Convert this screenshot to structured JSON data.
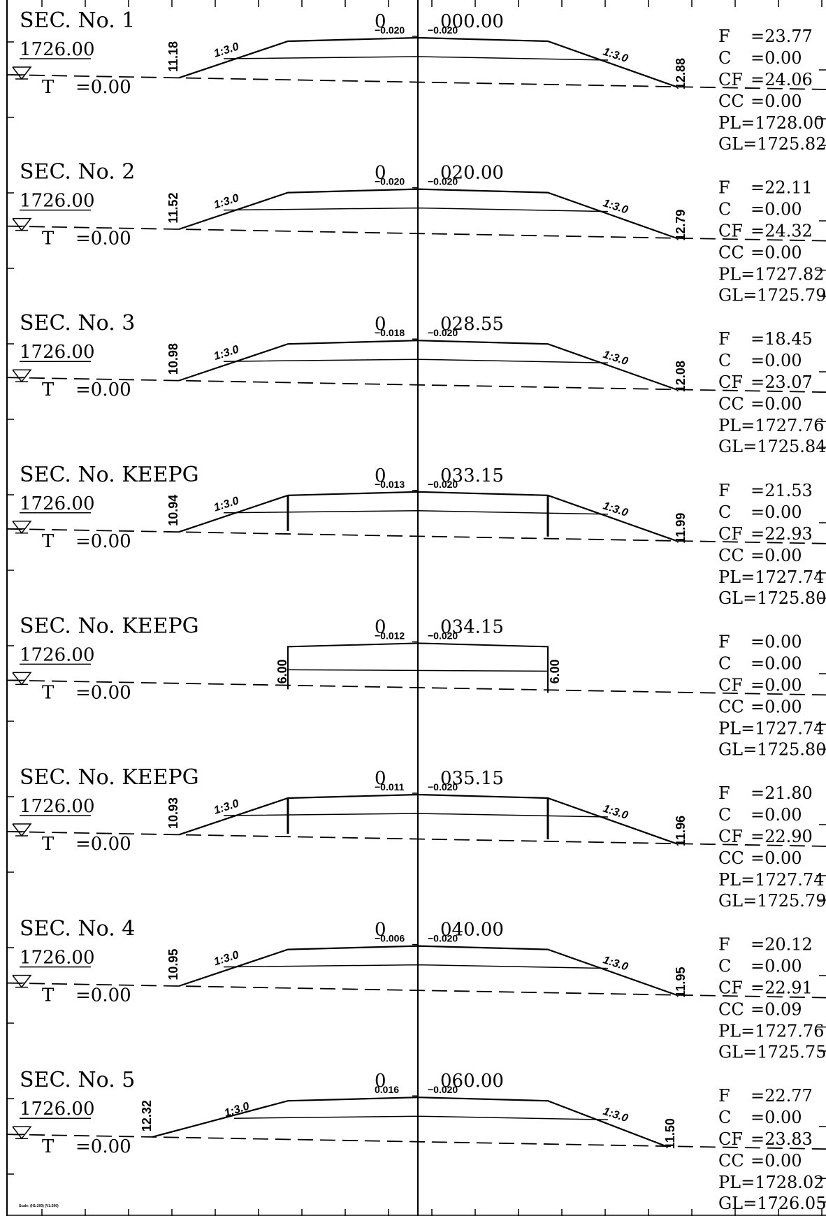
{
  "drawing": {
    "scale_note": "Scale: (H1:200) (V1:200)",
    "datum_label": "T",
    "sections": [
      {
        "title": "SEC.  No.  1",
        "offset_prefix": "0",
        "chainage": "000.00",
        "datum_elevation": "1726.00",
        "t_value": "=0.00",
        "left_camber": "−0.020",
        "right_camber": "−0.020",
        "left_slope": "1:3.0",
        "right_slope": "1:3.0",
        "left_height": "11.18",
        "right_height": "12.88",
        "wall": false,
        "props": {
          "F": "=23.77",
          "C": "=0.00",
          "CF": "=24.06",
          "CC": "=0.00",
          "PL": "PL=1728.00",
          "GL": "GL=1725.82"
        }
      },
      {
        "title": "SEC.  No.  2",
        "offset_prefix": "0",
        "chainage": "020.00",
        "datum_elevation": "1726.00",
        "t_value": "=0.00",
        "left_camber": "−0.020",
        "right_camber": "−0.020",
        "left_slope": "1:3.0",
        "right_slope": "1:3.0",
        "left_height": "11.52",
        "right_height": "12.79",
        "wall": false,
        "props": {
          "F": "=22.11",
          "C": "=0.00",
          "CF": "=24.32",
          "CC": "=0.00",
          "PL": "PL=1727.82",
          "GL": "GL=1725.79"
        }
      },
      {
        "title": "SEC.  No.  3",
        "offset_prefix": "0",
        "chainage": "028.55",
        "datum_elevation": "1726.00",
        "t_value": "=0.00",
        "left_camber": "−0.018",
        "right_camber": "−0.020",
        "left_slope": "1:3.0",
        "right_slope": "1:3.0",
        "left_height": "10.98",
        "right_height": "12.08",
        "wall": false,
        "props": {
          "F": "=18.45",
          "C": "=0.00",
          "CF": "=23.07",
          "CC": "=0.00",
          "PL": "PL=1727.76",
          "GL": "GL=1725.84"
        }
      },
      {
        "title": "SEC.  No.  KEEPG",
        "offset_prefix": "0",
        "chainage": "033.15",
        "datum_elevation": "1726.00",
        "t_value": "=0.00",
        "left_camber": "−0.013",
        "right_camber": "−0.020",
        "left_slope": "1:3.0",
        "right_slope": "1:3.0",
        "left_height": "10.94",
        "right_height": "11.99",
        "wall": true,
        "props": {
          "F": "=21.53",
          "C": "=0.00",
          "CF": "=22.93",
          "CC": "=0.00",
          "PL": "PL=1727.74",
          "GL": "GL=1725.80"
        }
      },
      {
        "title": "SEC.  No.  KEEPG",
        "offset_prefix": "0",
        "chainage": "034.15",
        "datum_elevation": "1726.00",
        "t_value": "=0.00",
        "left_camber": "−0.012",
        "right_camber": "−0.020",
        "left_slope": "",
        "right_slope": "",
        "left_height": "6.00",
        "right_height": "6.00",
        "wall": true,
        "box_only": true,
        "props": {
          "F": "=0.00",
          "C": "=0.00",
          "CF": "=0.00",
          "CC": "=0.00",
          "PL": "PL=1727.74",
          "GL": "GL=1725.80"
        }
      },
      {
        "title": "SEC.  No.  KEEPG",
        "offset_prefix": "0",
        "chainage": "035.15",
        "datum_elevation": "1726.00",
        "t_value": "=0.00",
        "left_camber": "−0.011",
        "right_camber": "−0.020",
        "left_slope": "1:3.0",
        "right_slope": "1:3.0",
        "left_height": "10.93",
        "right_height": "11.96",
        "wall": true,
        "props": {
          "F": "=21.80",
          "C": "=0.00",
          "CF": "=22.90",
          "CC": "=0.00",
          "PL": "PL=1727.74",
          "GL": "GL=1725.79"
        }
      },
      {
        "title": "SEC.  No.  4",
        "offset_prefix": "0",
        "chainage": "040.00",
        "datum_elevation": "1726.00",
        "t_value": "=0.00",
        "left_camber": "−0.006",
        "right_camber": "−0.020",
        "left_slope": "1:3.0",
        "right_slope": "1:3.0",
        "left_height": "10.95",
        "right_height": "11.95",
        "wall": false,
        "props": {
          "F": "=20.12",
          "C": "=0.00",
          "CF": "=22.91",
          "CC": "=0.09",
          "PL": "PL=1727.76",
          "GL": "GL=1725.75"
        }
      },
      {
        "title": "SEC.  No.  5",
        "offset_prefix": "0",
        "chainage": "060.00",
        "datum_elevation": "1726.00",
        "t_value": "=0.00",
        "left_camber": "0.016",
        "right_camber": "−0.020",
        "left_slope": "1:3.0",
        "right_slope": "1:3.0",
        "left_height": "12.32",
        "right_height": "11.50",
        "wall": false,
        "wide": true,
        "props": {
          "F": "=22.77",
          "C": "=0.00",
          "CF": "=23.83",
          "CC": "=0.00",
          "PL": "PL=1728.02",
          "GL": "GL=1726.05"
        }
      }
    ]
  }
}
